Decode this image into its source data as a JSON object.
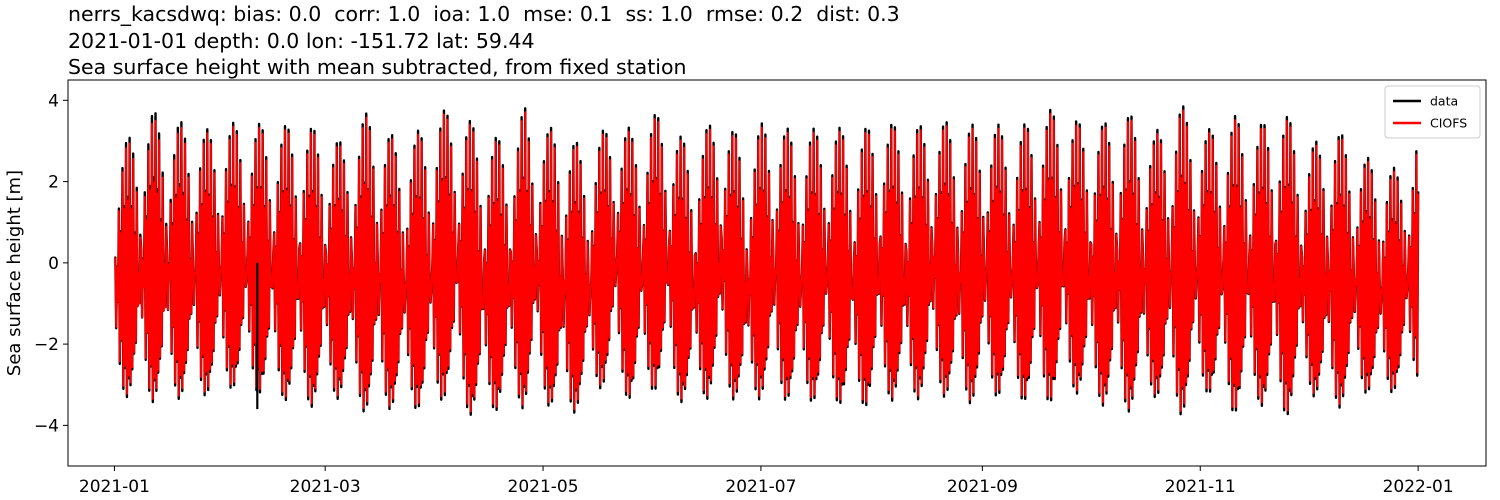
{
  "chart_data": {
    "type": "line",
    "title_lines": [
      "nerrs_kacsdwq: bias: 0.0  corr: 1.0  ioa: 1.0  mse: 0.1  ss: 1.0  rmse: 0.2  dist: 0.3",
      "2021-01-01 depth: 0.0 lon: -151.72 lat: 59.44",
      "Sea surface height with mean subtracted, from fixed station"
    ],
    "xlabel": "",
    "ylabel": "Sea surface height [m]",
    "xlim": [
      "2020-12-19",
      "2022-01-20"
    ],
    "ylim": [
      -5.0,
      4.5
    ],
    "xticks": [
      "2021-01",
      "2021-03",
      "2021-05",
      "2021-07",
      "2021-09",
      "2021-11",
      "2022-01"
    ],
    "yticks": [
      4,
      2,
      0,
      -2,
      -4
    ],
    "ytick_labels": [
      "4",
      "2",
      "0",
      "−2",
      "−4"
    ],
    "grid": false,
    "legend_position": "top-right",
    "series": [
      {
        "name": "data",
        "color": "#000000",
        "x_start": "2021-01-01",
        "x_end": "2022-01-01",
        "envelope_days": [
          0,
          10,
          25,
          34,
          55,
          64,
          72,
          80,
          89,
          94,
          102,
          110,
          115,
          118,
          125,
          133,
          139,
          145,
          153,
          161,
          170,
          177,
          182,
          192,
          200,
          207,
          215,
          222,
          230,
          237,
          245,
          253,
          260,
          268,
          275,
          283,
          291,
          298,
          306,
          313,
          320,
          327,
          334,
          341,
          348,
          355,
          360,
          365
        ],
        "envelope_max": [
          2.7,
          3.8,
          3.3,
          3.5,
          3.4,
          3.0,
          3.9,
          2.9,
          3.6,
          3.9,
          3.4,
          3.0,
          3.9,
          3.2,
          3.5,
          2.6,
          3.7,
          3.3,
          3.8,
          2.9,
          3.8,
          2.8,
          3.6,
          3.2,
          3.5,
          3.2,
          3.6,
          3.3,
          3.6,
          3.4,
          3.5,
          3.3,
          3.9,
          3.6,
          3.4,
          3.8,
          3.2,
          4.0,
          3.3,
          3.7,
          3.4,
          3.9,
          2.8,
          3.5,
          2.7,
          2.5,
          2.3,
          3.2
        ],
        "envelope_min": [
          -3.7,
          -4.0,
          -3.8,
          -3.6,
          -4.1,
          -3.8,
          -4.4,
          -4.0,
          -4.3,
          -3.7,
          -4.6,
          -3.9,
          -4.2,
          -3.5,
          -4.6,
          -3.8,
          -3.4,
          -4.0,
          -3.6,
          -4.1,
          -3.7,
          -4.1,
          -3.8,
          -4.0,
          -3.9,
          -4.2,
          -3.9,
          -4.0,
          -3.7,
          -4.1,
          -3.8,
          -3.9,
          -4.1,
          -3.7,
          -4.0,
          -4.3,
          -3.8,
          -4.4,
          -3.7,
          -4.3,
          -4.0,
          -4.5,
          -3.6,
          -4.3,
          -3.6,
          -3.8,
          -3.5,
          -3.3
        ]
      },
      {
        "name": "CIOFS",
        "color": "#ff0000",
        "x_start": "2021-01-01",
        "x_end": "2022-01-01",
        "envelope_days": [
          0,
          10,
          25,
          34,
          55,
          64,
          72,
          80,
          89,
          94,
          102,
          110,
          115,
          118,
          125,
          133,
          139,
          145,
          153,
          161,
          170,
          177,
          182,
          192,
          200,
          207,
          215,
          222,
          230,
          237,
          245,
          253,
          260,
          268,
          275,
          283,
          291,
          298,
          306,
          313,
          320,
          327,
          334,
          341,
          348,
          355,
          360,
          365
        ],
        "envelope_max": [
          2.6,
          3.6,
          3.2,
          3.4,
          3.3,
          2.9,
          3.8,
          2.8,
          3.5,
          3.8,
          3.3,
          2.9,
          3.8,
          3.1,
          3.4,
          2.5,
          3.6,
          3.2,
          3.7,
          2.8,
          3.7,
          2.7,
          3.5,
          3.1,
          3.4,
          3.1,
          3.5,
          3.2,
          3.5,
          3.3,
          3.4,
          3.2,
          3.8,
          3.5,
          3.3,
          3.7,
          3.1,
          3.9,
          3.2,
          3.6,
          3.3,
          3.8,
          2.7,
          3.4,
          2.6,
          2.4,
          2.2,
          3.1
        ],
        "envelope_min": [
          -3.6,
          -3.9,
          -3.7,
          -3.5,
          -4.0,
          -3.7,
          -4.3,
          -3.9,
          -4.2,
          -3.6,
          -4.5,
          -3.8,
          -4.1,
          -3.4,
          -4.5,
          -3.7,
          -3.3,
          -3.9,
          -3.5,
          -4.0,
          -3.6,
          -4.0,
          -3.7,
          -3.9,
          -3.8,
          -4.1,
          -3.8,
          -3.9,
          -3.6,
          -4.0,
          -3.7,
          -3.8,
          -4.0,
          -3.6,
          -3.9,
          -4.2,
          -3.7,
          -4.3,
          -3.6,
          -4.2,
          -3.9,
          -4.4,
          -3.5,
          -4.2,
          -3.5,
          -3.7,
          -3.4,
          -3.2
        ]
      }
    ],
    "annotations": [
      {
        "series": "data",
        "date": "2021-02-10",
        "y_low": -3.6
      }
    ]
  }
}
